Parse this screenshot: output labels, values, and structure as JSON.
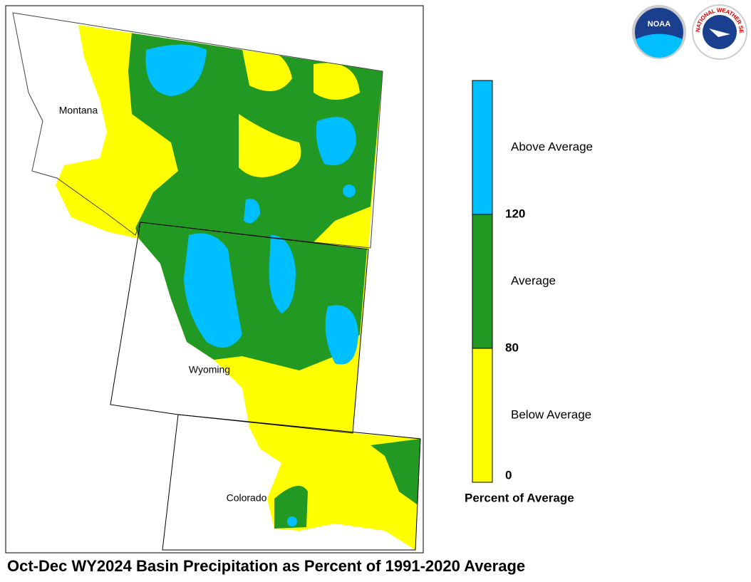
{
  "title": "Oct-Dec WY2024 Basin Precipitation as Percent of 1991-2020 Average",
  "map": {
    "states": [
      "Montana",
      "Wyoming",
      "Colorado"
    ]
  },
  "legend": {
    "title": "Percent of Average",
    "classes": [
      {
        "label": "Below Average",
        "color": "#ffff00"
      },
      {
        "label": "Average",
        "color": "#229922"
      },
      {
        "label": "Above Average",
        "color": "#00bfff"
      }
    ],
    "ticks": [
      0,
      80,
      120
    ]
  },
  "logos": {
    "noaa": "NOAA",
    "nws": "NATIONAL WEATHER SERVICE"
  }
}
